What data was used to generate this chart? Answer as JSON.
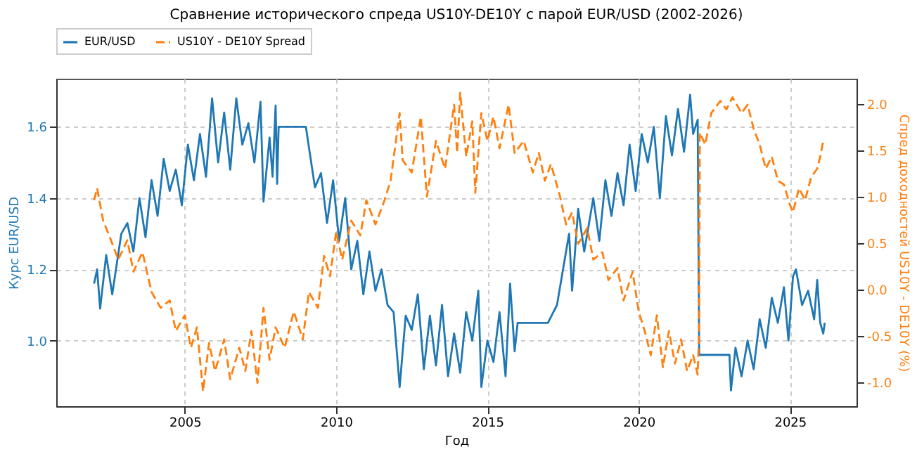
{
  "chart_data": {
    "type": "line",
    "title": "Сравнение исторического спреда US10Y-DE10Y с парой EUR/USD (2002-2026)",
    "xlabel": "Год",
    "ylabel": "Курс EUR/USD",
    "y2label": "Спред доходностей US10Y - DE10Y (%)",
    "xlim": [
      2000.75,
      2027.2
    ],
    "xticks": [
      2005,
      2010,
      2015,
      2020,
      2025
    ],
    "ylim": [
      0.816,
      1.735
    ],
    "yticks": [
      {
        "value": 1,
        "label": "1.0"
      },
      {
        "value": 1.2,
        "label": "1.2"
      },
      {
        "value": 1.4,
        "label": "1.4"
      },
      {
        "value": 1.6,
        "label": "1.6"
      }
    ],
    "y2lim": [
      -1.26,
      2.27
    ],
    "y2ticks": [
      {
        "value": -1,
        "label": "-1.0"
      },
      {
        "value": -0.5,
        "label": "-0.5"
      },
      {
        "value": 0,
        "label": "0.0"
      },
      {
        "value": 0.5,
        "label": "0.5"
      },
      {
        "value": 1,
        "label": "1.0"
      },
      {
        "value": 1.5,
        "label": "1.5"
      },
      {
        "value": 2,
        "label": "2.0"
      }
    ],
    "grid": true,
    "legend": "top",
    "marker": "none",
    "series": [
      {
        "name": "EUR/USD",
        "color": "#1f77b4",
        "line_style": "solid",
        "x": [
          2002.0,
          2002.1,
          2002.2,
          2002.4,
          2002.6,
          2002.9,
          2003.1,
          2003.3,
          2003.5,
          2003.7,
          2003.9,
          2004.1,
          2004.3,
          2004.5,
          2004.7,
          2004.9,
          2005.1,
          2005.3,
          2005.5,
          2005.7,
          2005.9,
          2006.1,
          2006.3,
          2006.5,
          2006.7,
          2006.9,
          2007.1,
          2007.3,
          2007.5,
          2007.6,
          2007.8,
          2007.9,
          2008.0,
          2008.05,
          2008.1,
          2009.0,
          2009.3,
          2009.5,
          2009.7,
          2009.9,
          2010.1,
          2010.3,
          2010.5,
          2010.7,
          2010.9,
          2011.1,
          2011.3,
          2011.5,
          2011.7,
          2011.9,
          2012.1,
          2012.3,
          2012.5,
          2012.7,
          2012.9,
          2013.1,
          2013.3,
          2013.5,
          2013.7,
          2013.9,
          2014.1,
          2014.3,
          2014.5,
          2014.7,
          2014.8,
          2015.0,
          2015.2,
          2015.4,
          2015.6,
          2015.75,
          2015.9,
          2016.0,
          2017.0,
          2017.3,
          2017.5,
          2017.7,
          2017.8,
          2018.0,
          2018.2,
          2018.5,
          2018.7,
          2018.9,
          2019.1,
          2019.3,
          2019.5,
          2019.7,
          2019.9,
          2020.1,
          2020.3,
          2020.5,
          2020.7,
          2020.9,
          2021.1,
          2021.3,
          2021.5,
          2021.7,
          2021.8,
          2021.95,
          2022.0,
          2023.0,
          2023.05,
          2023.2,
          2023.4,
          2023.6,
          2023.8,
          2024.0,
          2024.2,
          2024.4,
          2024.6,
          2024.8,
          2024.95,
          2025.1,
          2025.2,
          2025.4,
          2025.6,
          2025.8,
          2025.9,
          2026.0,
          2026.1,
          2026.15
        ],
        "values": [
          1.16,
          1.2,
          1.09,
          1.24,
          1.13,
          1.3,
          1.33,
          1.25,
          1.4,
          1.29,
          1.45,
          1.35,
          1.51,
          1.42,
          1.48,
          1.38,
          1.55,
          1.45,
          1.58,
          1.46,
          1.68,
          1.5,
          1.64,
          1.48,
          1.68,
          1.55,
          1.61,
          1.5,
          1.67,
          1.39,
          1.57,
          1.46,
          1.66,
          1.44,
          1.6,
          1.6,
          1.43,
          1.47,
          1.33,
          1.45,
          1.28,
          1.4,
          1.2,
          1.28,
          1.13,
          1.25,
          1.14,
          1.2,
          1.1,
          1.08,
          0.87,
          1.07,
          1.03,
          1.13,
          0.92,
          1.07,
          0.93,
          1.1,
          0.9,
          1.02,
          0.91,
          1.08,
          1.0,
          1.14,
          0.87,
          1.0,
          0.94,
          1.08,
          0.9,
          1.16,
          0.97,
          1.05,
          1.05,
          1.1,
          1.2,
          1.3,
          1.14,
          1.37,
          1.25,
          1.4,
          1.28,
          1.45,
          1.35,
          1.47,
          1.38,
          1.55,
          1.42,
          1.58,
          1.5,
          1.6,
          1.4,
          1.63,
          1.52,
          1.65,
          1.53,
          1.69,
          1.58,
          1.62,
          0.96,
          0.96,
          0.86,
          0.98,
          0.9,
          1.0,
          0.92,
          1.06,
          0.98,
          1.12,
          1.05,
          1.15,
          1.0,
          1.18,
          1.2,
          1.1,
          1.14,
          1.06,
          1.17,
          1.05,
          1.02,
          1.05
        ]
      },
      {
        "name": "US10Y - DE10Y Spread",
        "color": "#ff7f0e",
        "line_style": "dashed",
        "axis": "y2",
        "x": [
          2002.0,
          2002.1,
          2002.3,
          2002.5,
          2002.8,
          2003.1,
          2003.3,
          2003.6,
          2003.9,
          2004.2,
          2004.5,
          2004.7,
          2005.0,
          2005.2,
          2005.4,
          2005.6,
          2005.8,
          2006.0,
          2006.3,
          2006.5,
          2006.8,
          2007.0,
          2007.2,
          2007.4,
          2007.6,
          2007.8,
          2008.0,
          2008.3,
          2008.6,
          2008.9,
          2009.1,
          2009.4,
          2009.6,
          2009.8,
          2010.0,
          2010.2,
          2010.5,
          2010.8,
          2011.0,
          2011.3,
          2011.6,
          2011.8,
          2012.1,
          2012.2,
          2012.5,
          2012.8,
          2013.0,
          2013.3,
          2013.6,
          2013.9,
          2014.0,
          2014.1,
          2014.3,
          2014.5,
          2014.6,
          2014.8,
          2015.0,
          2015.2,
          2015.4,
          2015.7,
          2015.9,
          2016.2,
          2016.5,
          2016.7,
          2016.9,
          2017.1,
          2017.4,
          2017.6,
          2017.8,
          2018.0,
          2018.3,
          2018.5,
          2018.8,
          2019.0,
          2019.3,
          2019.5,
          2019.8,
          2020.0,
          2020.2,
          2020.4,
          2020.6,
          2020.8,
          2021.0,
          2021.2,
          2021.4,
          2021.6,
          2021.8,
          2021.95,
          2022.0,
          2022.02,
          2022.2,
          2022.4,
          2022.7,
          2022.9,
          2023.1,
          2023.4,
          2023.6,
          2023.8,
          2024.0,
          2024.2,
          2024.4,
          2024.6,
          2024.8,
          2025.0,
          2025.1,
          2025.3,
          2025.5,
          2025.7,
          2025.9,
          2026.0,
          2026.1
        ],
        "values": [
          0.96,
          1.09,
          0.74,
          0.58,
          0.32,
          0.53,
          0.19,
          0.4,
          -0.03,
          -0.2,
          -0.12,
          -0.45,
          -0.28,
          -0.63,
          -0.41,
          -1.1,
          -0.58,
          -0.88,
          -0.54,
          -0.97,
          -0.63,
          -0.88,
          -0.45,
          -1.01,
          -0.2,
          -0.76,
          -0.41,
          -0.63,
          -0.24,
          -0.54,
          -0.03,
          -0.2,
          0.36,
          0.14,
          0.62,
          0.32,
          0.74,
          0.58,
          0.96,
          0.7,
          0.96,
          1.17,
          1.9,
          1.39,
          1.26,
          1.86,
          1.0,
          1.6,
          1.3,
          1.99,
          1.47,
          2.12,
          1.43,
          1.81,
          1.04,
          1.9,
          1.6,
          1.86,
          1.52,
          1.99,
          1.47,
          1.6,
          1.26,
          1.47,
          1.17,
          1.35,
          1.0,
          0.7,
          0.83,
          0.49,
          0.66,
          0.32,
          0.4,
          0.1,
          0.23,
          -0.12,
          0.19,
          -0.24,
          -0.45,
          -0.71,
          -0.28,
          -0.84,
          -0.45,
          -0.8,
          -0.54,
          -0.88,
          -0.71,
          -0.92,
          -0.41,
          1.69,
          1.56,
          1.9,
          2.03,
          1.94,
          2.07,
          1.9,
          1.99,
          1.73,
          1.56,
          1.3,
          1.43,
          1.17,
          1.13,
          0.91,
          0.83,
          1.09,
          0.96,
          1.21,
          1.3,
          1.43,
          1.6
        ]
      }
    ]
  }
}
